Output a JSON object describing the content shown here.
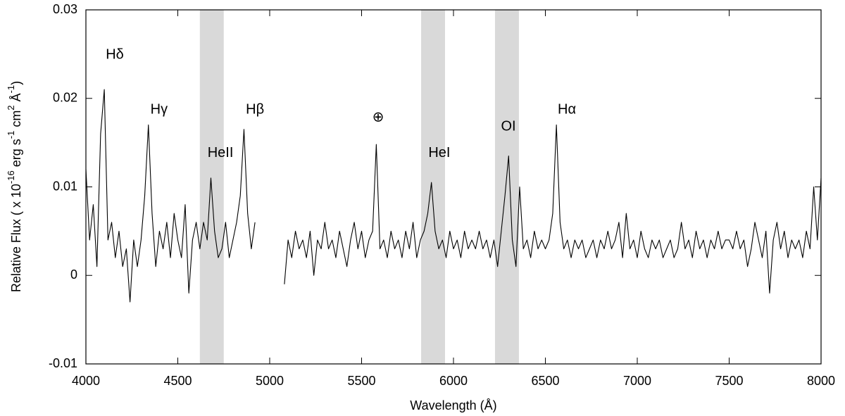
{
  "chart_data": {
    "type": "line",
    "xlabel": "Wavelength (Å)",
    "ylabel": [
      {
        "text": "Relative Flux ( x 10"
      },
      {
        "text": "-16",
        "sup": true
      },
      {
        "text": " erg s"
      },
      {
        "text": "-1",
        "sup": true
      },
      {
        "text": " cm"
      },
      {
        "text": "2",
        "sup": true
      },
      {
        "text": " Å"
      },
      {
        "text": "-1",
        "sup": true
      },
      {
        "text": ")"
      }
    ],
    "xlim": [
      4000,
      8000
    ],
    "ylim": [
      -0.01,
      0.03
    ],
    "xticks": [
      4000,
      4500,
      5000,
      5500,
      6000,
      6500,
      7000,
      7500,
      8000
    ],
    "yticks": [
      -0.01,
      0,
      0.01,
      0.02,
      0.03
    ],
    "color": "#000000",
    "shade_color": "#d9d9d9",
    "shaded_regions": [
      [
        4620,
        4750
      ],
      [
        5824,
        5954
      ],
      [
        6226,
        6356
      ]
    ],
    "annotations": [
      {
        "text": "Hδ",
        "x": 4157,
        "y": 0.0249
      },
      {
        "text": "Hγ",
        "x": 4398,
        "y": 0.0187
      },
      {
        "text": "HeII",
        "x": 4732,
        "y": 0.0138
      },
      {
        "text": "Hβ",
        "x": 4920,
        "y": 0.0187
      },
      {
        "text": "⊕",
        "x": 5590,
        "y": 0.0178
      },
      {
        "text": "HeI",
        "x": 5923,
        "y": 0.0138
      },
      {
        "text": "OI",
        "x": 6299,
        "y": 0.0168
      },
      {
        "text": "Hα",
        "x": 6617,
        "y": 0.0187
      }
    ],
    "x": [
      4000,
      4020,
      4040,
      4060,
      4080,
      4100,
      4120,
      4140,
      4160,
      4180,
      4200,
      4220,
      4240,
      4260,
      4280,
      4300,
      4320,
      4340,
      4360,
      4380,
      4400,
      4420,
      4440,
      4460,
      4480,
      4500,
      4520,
      4540,
      4560,
      4580,
      4600,
      4620,
      4640,
      4660,
      4680,
      4700,
      4720,
      4740,
      4760,
      4780,
      4800,
      4820,
      4840,
      4860,
      4880,
      4900,
      4920,
      4940,
      4960,
      4980,
      5000,
      5020,
      5040,
      5060,
      5080,
      5100,
      5120,
      5140,
      5160,
      5180,
      5200,
      5220,
      5240,
      5260,
      5280,
      5300,
      5320,
      5340,
      5360,
      5380,
      5400,
      5420,
      5440,
      5460,
      5480,
      5500,
      5520,
      5540,
      5560,
      5580,
      5600,
      5620,
      5640,
      5660,
      5680,
      5700,
      5720,
      5740,
      5760,
      5780,
      5800,
      5820,
      5840,
      5860,
      5880,
      5900,
      5920,
      5940,
      5960,
      5980,
      6000,
      6020,
      6040,
      6060,
      6080,
      6100,
      6120,
      6140,
      6160,
      6180,
      6200,
      6220,
      6240,
      6260,
      6280,
      6300,
      6320,
      6340,
      6360,
      6380,
      6400,
      6420,
      6440,
      6460,
      6480,
      6500,
      6520,
      6540,
      6560,
      6580,
      6600,
      6620,
      6640,
      6660,
      6680,
      6700,
      6720,
      6740,
      6760,
      6780,
      6800,
      6820,
      6840,
      6860,
      6880,
      6900,
      6920,
      6940,
      6960,
      6980,
      7000,
      7020,
      7040,
      7060,
      7080,
      7100,
      7120,
      7140,
      7160,
      7180,
      7200,
      7220,
      7240,
      7260,
      7280,
      7300,
      7320,
      7340,
      7360,
      7380,
      7400,
      7420,
      7440,
      7460,
      7480,
      7500,
      7520,
      7540,
      7560,
      7580,
      7600,
      7620,
      7640,
      7660,
      7680,
      7700,
      7720,
      7740,
      7760,
      7780,
      7800,
      7820,
      7840,
      7860,
      7880,
      7900,
      7920,
      7940,
      7960,
      7980,
      8000
    ],
    "values": [
      0.012,
      0.004,
      0.008,
      0.001,
      0.016,
      0.021,
      0.004,
      0.006,
      0.002,
      0.005,
      0.001,
      0.003,
      -0.003,
      0.004,
      0.001,
      0.004,
      0.009,
      0.017,
      0.007,
      0.001,
      0.005,
      0.003,
      0.006,
      0.002,
      0.007,
      0.004,
      0.002,
      0.008,
      -0.002,
      0.004,
      0.006,
      0.003,
      0.006,
      0.004,
      0.011,
      0.005,
      0.002,
      0.003,
      0.006,
      0.002,
      0.004,
      0.006,
      0.009,
      0.0165,
      0.007,
      0.003,
      0.006,
      null,
      null,
      null,
      null,
      null,
      null,
      null,
      -0.001,
      0.004,
      0.002,
      0.005,
      0.003,
      0.004,
      0.002,
      0.005,
      0,
      0.004,
      0.003,
      0.006,
      0.003,
      0.004,
      0.002,
      0.005,
      0.003,
      0.001,
      0.004,
      0.006,
      0.003,
      0.005,
      0.002,
      0.004,
      0.005,
      0.0148,
      0.003,
      0.004,
      0.002,
      0.005,
      0.003,
      0.004,
      0.002,
      0.005,
      0.003,
      0.006,
      0.002,
      0.004,
      0.005,
      0.007,
      0.0105,
      0.005,
      0.003,
      0.004,
      0.002,
      0.005,
      0.003,
      0.004,
      0.002,
      0.005,
      0.003,
      0.004,
      0.003,
      0.005,
      0.003,
      0.004,
      0.002,
      0.004,
      0.001,
      0.005,
      0.009,
      0.0135,
      0.004,
      0.001,
      0.01,
      0.003,
      0.004,
      0.002,
      0.005,
      0.003,
      0.004,
      0.003,
      0.004,
      0.007,
      0.017,
      0.006,
      0.003,
      0.004,
      0.002,
      0.004,
      0.003,
      0.004,
      0.002,
      0.003,
      0.004,
      0.002,
      0.004,
      0.003,
      0.005,
      0.003,
      0.004,
      0.006,
      0.002,
      0.007,
      0.003,
      0.004,
      0.002,
      0.005,
      0.003,
      0.002,
      0.004,
      0.003,
      0.004,
      0.002,
      0.003,
      0.004,
      0.002,
      0.003,
      0.006,
      0.003,
      0.004,
      0.002,
      0.005,
      0.003,
      0.004,
      0.002,
      0.004,
      0.003,
      0.005,
      0.003,
      0.004,
      0.004,
      0.003,
      0.005,
      0.003,
      0.004,
      0.001,
      0.003,
      0.006,
      0.004,
      0.002,
      0.005,
      -0.002,
      0.004,
      0.006,
      0.003,
      0.005,
      0.002,
      0.004,
      0.003,
      0.004,
      0.002,
      0.005,
      0.003,
      0.01,
      0.004,
      0.011
    ]
  }
}
